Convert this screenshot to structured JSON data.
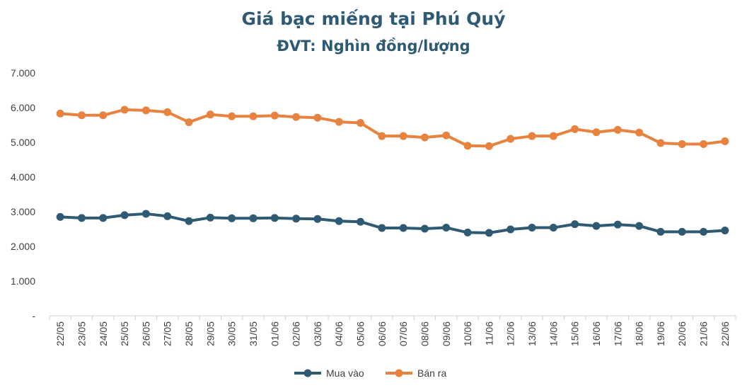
{
  "chart_data": {
    "type": "line",
    "title": "Giá bạc miếng tại Phú Quý",
    "subtitle": "ĐVT: Nghìn đồng/lượng",
    "categories": [
      "22/05",
      "23/05",
      "24/05",
      "25/05",
      "26/05",
      "27/05",
      "28/05",
      "29/05",
      "30/05",
      "31/05",
      "01/06",
      "02/06",
      "03/06",
      "04/06",
      "05/06",
      "06/06",
      "07/06",
      "08/06",
      "09/06",
      "10/06",
      "11/06",
      "12/06",
      "13/06",
      "14/06",
      "15/06",
      "16/06",
      "17/06",
      "18/06",
      "19/06",
      "20/06",
      "21/06",
      "22/06"
    ],
    "y_tick_labels": [
      "-",
      "1.000",
      "2.000",
      "3.000",
      "4.000",
      "5.000",
      "6.000",
      "7.000"
    ],
    "ylim": [
      0,
      7000
    ],
    "grid": false,
    "legend_position": "bottom",
    "series": [
      {
        "name": "Mua vào",
        "color": "#2e5a73",
        "values": [
          2850,
          2820,
          2820,
          2900,
          2940,
          2870,
          2730,
          2830,
          2810,
          2810,
          2820,
          2800,
          2790,
          2730,
          2710,
          2530,
          2530,
          2510,
          2540,
          2400,
          2390,
          2490,
          2540,
          2540,
          2640,
          2590,
          2630,
          2590,
          2420,
          2420,
          2420,
          2460
        ]
      },
      {
        "name": "Bán ra",
        "color": "#e8823f",
        "values": [
          5830,
          5780,
          5780,
          5940,
          5920,
          5870,
          5580,
          5800,
          5750,
          5750,
          5770,
          5730,
          5710,
          5590,
          5560,
          5180,
          5180,
          5140,
          5200,
          4900,
          4890,
          5100,
          5180,
          5180,
          5380,
          5290,
          5360,
          5280,
          4980,
          4950,
          4950,
          5030
        ]
      }
    ]
  }
}
